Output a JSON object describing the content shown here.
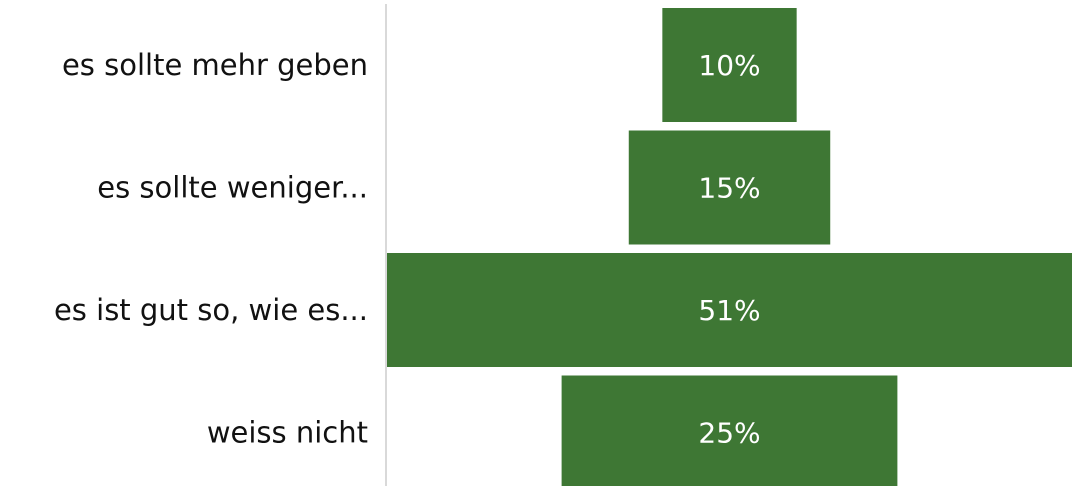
{
  "chart_data": {
    "type": "funnel",
    "categories": [
      "es sollte mehr geben",
      "es sollte weniger...",
      "es ist gut so, wie es...",
      "weiss nicht"
    ],
    "values": [
      10,
      15,
      51,
      25
    ],
    "value_labels": [
      "10%",
      "15%",
      "51%",
      "25%"
    ],
    "color": "#3e7734"
  }
}
